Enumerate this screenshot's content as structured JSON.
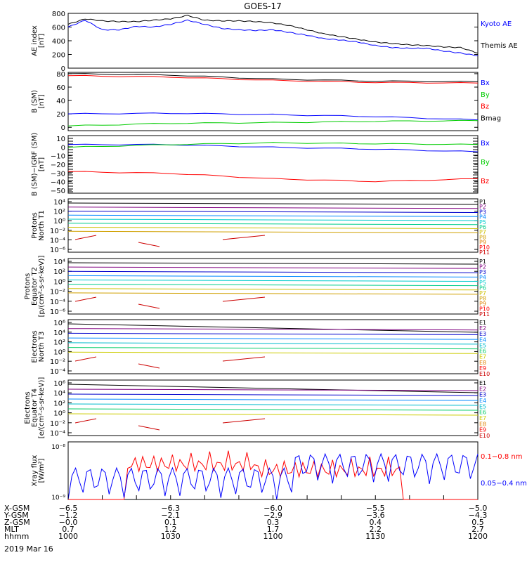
{
  "title": "GOES-17",
  "date_label": "2019 Mar 16",
  "chart_data": [
    {
      "type": "line",
      "panel": "ae",
      "ylabel": [
        "AE index",
        "[nT]"
      ],
      "ylim": [
        0,
        800
      ],
      "yticks": [
        "0",
        "200",
        "400",
        "600",
        "800"
      ],
      "x": [
        1000,
        1005,
        1010,
        1015,
        1020,
        1025,
        1030,
        1035,
        1040,
        1045,
        1050,
        1055,
        1100,
        1105,
        1110,
        1115,
        1120,
        1125,
        1130,
        1135,
        1140,
        1145,
        1150,
        1155,
        1200
      ],
      "series": [
        {
          "name": "Kyoto AE",
          "color": "#0000ff",
          "values": [
            600,
            700,
            560,
            560,
            610,
            600,
            640,
            700,
            640,
            580,
            560,
            550,
            560,
            520,
            480,
            430,
            410,
            380,
            330,
            300,
            290,
            290,
            250,
            220,
            180
          ]
        },
        {
          "name": "Themis AE",
          "color": "#000000",
          "values": [
            640,
            720,
            690,
            680,
            680,
            700,
            720,
            770,
            700,
            690,
            690,
            680,
            660,
            620,
            560,
            500,
            460,
            420,
            380,
            360,
            340,
            330,
            310,
            300,
            220
          ]
        }
      ]
    },
    {
      "type": "line",
      "panel": "b",
      "ylabel": [
        "B (SM)",
        "[nT]"
      ],
      "ylim": [
        -5,
        82
      ],
      "yticks": [
        "0",
        "20",
        "40",
        "60",
        "80"
      ],
      "x": [
        1000,
        1030,
        1100,
        1130,
        1200
      ],
      "series": [
        {
          "name": "Bx",
          "color": "#0000ff",
          "values": [
            20,
            21,
            19,
            16,
            11
          ]
        },
        {
          "name": "By",
          "color": "#00cc00",
          "values": [
            2,
            6,
            7,
            9,
            10
          ]
        },
        {
          "name": "Bz",
          "color": "#ff0000",
          "values": [
            77,
            75,
            70,
            67,
            66
          ]
        },
        {
          "name": "Bmag",
          "color": "#000000",
          "values": [
            80,
            78,
            72,
            69,
            68
          ]
        }
      ]
    },
    {
      "type": "line",
      "panel": "db",
      "ylabel": [
        "B (SM)−IGRF (SM)",
        "[nT]"
      ],
      "ylim": [
        -52,
        12
      ],
      "yticks": [
        "10",
        "0",
        "−10",
        "−20",
        "−30",
        "−40",
        "−50"
      ],
      "x": [
        1000,
        1030,
        1100,
        1130,
        1200
      ],
      "series": [
        {
          "name": "Bx",
          "color": "#0000ff",
          "values": [
            2,
            2,
            -1,
            -3,
            -6
          ]
        },
        {
          "name": "By",
          "color": "#00cc00",
          "values": [
            -1,
            2,
            4,
            3,
            2
          ]
        },
        {
          "name": "Bz",
          "color": "#ff0000",
          "values": [
            -28,
            -30,
            -36,
            -39,
            -36
          ]
        }
      ]
    },
    {
      "type": "line",
      "panel": "p_north",
      "ylabel": [
        "Protons",
        "North T1"
      ],
      "yticks": [
        "10⁴",
        "10²",
        "10⁰",
        "10⁻²",
        "10⁻⁴",
        "10⁻⁶"
      ],
      "legend": [
        "P1",
        "P2",
        "P3",
        "P4",
        "P5",
        "P6",
        "P7",
        "P8",
        "P9",
        "P10",
        "P11"
      ]
    },
    {
      "type": "line",
      "panel": "p_equator",
      "ylabel": [
        "Protons",
        "Equator T2",
        "[p/(cm²-s-sr-keV)]"
      ],
      "yticks": [
        "10⁴",
        "10²",
        "10⁰",
        "10⁻²",
        "10⁻⁴",
        "10⁻⁶"
      ],
      "legend": [
        "P1",
        "P2",
        "P3",
        "P4",
        "P5",
        "P6",
        "P7",
        "P8",
        "P9",
        "P10",
        "P11"
      ]
    },
    {
      "type": "line",
      "panel": "e_north",
      "ylabel": [
        "Electrons",
        "North T3"
      ],
      "yticks": [
        "10⁶",
        "10⁴",
        "10²",
        "10⁰",
        "10⁻²",
        "10⁻⁴"
      ],
      "legend": [
        "E1",
        "E2",
        "E3",
        "E4",
        "E5",
        "E6",
        "E7",
        "E8",
        "E9",
        "E10"
      ]
    },
    {
      "type": "line",
      "panel": "e_equator",
      "ylabel": [
        "Electrons",
        "Equator T4",
        "[e/(cm²-s-sr-keV)]"
      ],
      "yticks": [
        "10⁶",
        "10⁴",
        "10²",
        "10⁰",
        "10⁻²",
        "10⁻⁴"
      ],
      "legend": [
        "E1",
        "E2",
        "E3",
        "E4",
        "E5",
        "E6",
        "E7",
        "E8",
        "E9",
        "E10"
      ]
    },
    {
      "type": "line",
      "panel": "xray",
      "ylabel": [
        "Xray flux",
        "[W/m²]"
      ],
      "yticks": [
        "10⁻⁸",
        "10⁻⁹"
      ],
      "legend": [
        "0.1−0.8 nm",
        "0.05−0.4 nm"
      ]
    }
  ],
  "x_axis": {
    "rows": [
      {
        "label": "X-GSM",
        "values": [
          "−6.5",
          "−6.3",
          "−6.0",
          "−5.5",
          "−5.0"
        ]
      },
      {
        "label": "Y-GSM",
        "values": [
          "−1.2",
          "−2.1",
          "−2.9",
          "−3.6",
          "−4.3"
        ]
      },
      {
        "label": "Z-GSM",
        "values": [
          "−0.0",
          "0.1",
          "0.3",
          "0.4",
          "0.5"
        ]
      },
      {
        "label": "MLT",
        "values": [
          "0.7",
          "1.2",
          "1.7",
          "2.2",
          "2.7"
        ]
      },
      {
        "label": "hhmm",
        "values": [
          "1000",
          "1030",
          "1100",
          "1130",
          "1200"
        ]
      }
    ]
  }
}
